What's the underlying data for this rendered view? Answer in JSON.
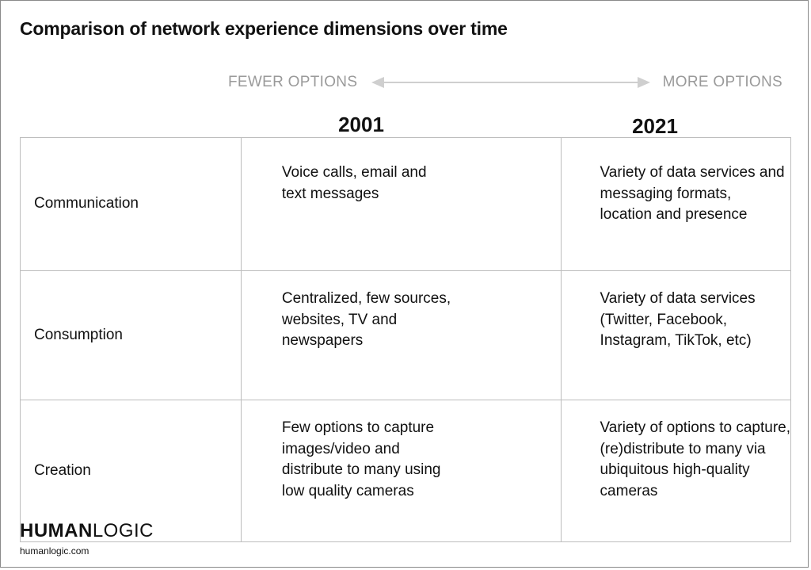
{
  "title": "Comparison of network experience dimensions over time",
  "axis": {
    "left_label": "FEWER OPTIONS",
    "right_label": "MORE OPTIONS",
    "arrow_color": "#cfcfcf",
    "label_color": "#9a9a9a"
  },
  "columns": {
    "col1": "2001",
    "col2": "2021"
  },
  "rows": [
    {
      "label": "Communication",
      "col1": [
        "Voice calls, email and",
        "text messages"
      ],
      "col2": [
        "Variety of data services and",
        "messaging formats,",
        "location and presence"
      ]
    },
    {
      "label": "Consumption",
      "col1": [
        "Centralized, few sources,",
        "websites, TV and",
        "newspapers"
      ],
      "col2": [
        "Variety of data services",
        "(Twitter, Facebook,",
        "Instagram, TikTok, etc)"
      ]
    },
    {
      "label": "Creation",
      "col1": [
        "Few options to capture",
        "images/video and",
        "distribute to many using",
        "low quality cameras"
      ],
      "col2": [
        "Variety of options to capture,",
        "(re)distribute to many via",
        "ubiquitous high-quality",
        "cameras"
      ]
    }
  ],
  "brand": {
    "part1": "HUMAN",
    "part2": "LOGIC",
    "website": "humanlogic.com"
  }
}
